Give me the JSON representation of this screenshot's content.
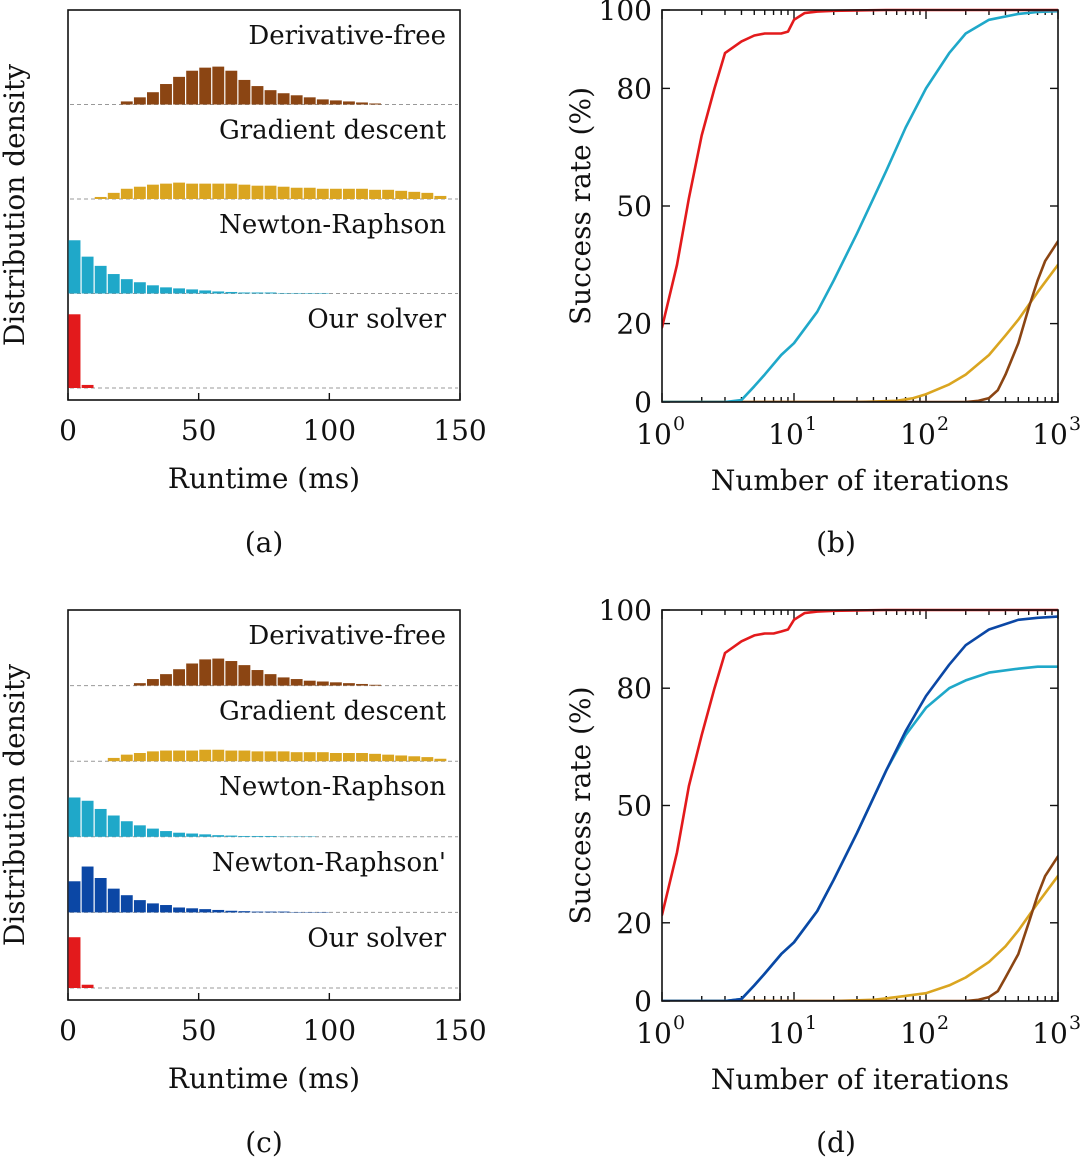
{
  "colors": {
    "derivative_free": "#8B4513",
    "gradient_descent": "#DAA520",
    "newton_raphson": "#1FA8C9",
    "newton_raphson_prime": "#0B47A5",
    "our_solver": "#E31A1C"
  },
  "chart_data": [
    {
      "panel": "(a)",
      "type": "bar",
      "subtype": "ridgeline-histogram",
      "xlabel": "Runtime (ms)",
      "ylabel": "Distribution density",
      "xlim": [
        0,
        150
      ],
      "xticks": [
        "0",
        "50",
        "100",
        "150"
      ],
      "bin_width": 5,
      "series": [
        {
          "name": "Derivative-free",
          "color": "derivative_free",
          "values": [
            0,
            0,
            0,
            0,
            0.03,
            0.07,
            0.12,
            0.2,
            0.27,
            0.33,
            0.36,
            0.37,
            0.33,
            0.24,
            0.18,
            0.14,
            0.11,
            0.09,
            0.07,
            0.05,
            0.04,
            0.03,
            0.02,
            0.01,
            0,
            0,
            0,
            0,
            0,
            0
          ]
        },
        {
          "name": "Gradient descent",
          "color": "gradient_descent",
          "values": [
            0,
            0,
            0.02,
            0.06,
            0.1,
            0.12,
            0.14,
            0.15,
            0.16,
            0.15,
            0.15,
            0.15,
            0.15,
            0.14,
            0.13,
            0.13,
            0.12,
            0.11,
            0.11,
            0.1,
            0.1,
            0.1,
            0.1,
            0.09,
            0.09,
            0.08,
            0.07,
            0.06,
            0.03,
            0
          ]
        },
        {
          "name": "Newton-Raphson",
          "color": "newton_raphson",
          "values": [
            0.52,
            0.36,
            0.27,
            0.19,
            0.14,
            0.11,
            0.08,
            0.06,
            0.05,
            0.04,
            0.03,
            0.02,
            0.015,
            0.01,
            0.01,
            0.01,
            0.005,
            0.005,
            0.005,
            0.005,
            0,
            0,
            0,
            0,
            0,
            0,
            0,
            0,
            0,
            0
          ]
        },
        {
          "name": "Our solver",
          "color": "our_solver",
          "values": [
            0.72,
            0.03,
            0,
            0,
            0,
            0,
            0,
            0,
            0,
            0,
            0,
            0,
            0,
            0,
            0,
            0,
            0,
            0,
            0,
            0,
            0,
            0,
            0,
            0,
            0,
            0,
            0,
            0,
            0,
            0
          ]
        }
      ]
    },
    {
      "panel": "(b)",
      "type": "line",
      "xscale": "log",
      "xlabel": "Number of iterations",
      "ylabel": "Success rate (%)",
      "xlim": [
        1,
        1000
      ],
      "ylim": [
        0,
        100
      ],
      "xticks_base": "10",
      "xticks_exp": [
        "0",
        "1",
        "2",
        "3"
      ],
      "yticks": [
        "0",
        "20",
        "50",
        "80",
        "100"
      ],
      "series": [
        {
          "name": "Our solver",
          "color": "our_solver",
          "x": [
            1,
            1.3,
            1.6,
            2,
            2.5,
            3,
            4,
            5,
            6,
            7,
            8,
            9,
            10,
            12,
            15,
            20,
            30,
            50,
            100,
            1000
          ],
          "y": [
            19,
            35,
            52,
            68,
            80,
            89,
            92,
            93.5,
            94,
            94,
            94,
            94.5,
            97.5,
            99.2,
            99.6,
            99.8,
            99.9,
            100,
            100,
            100
          ]
        },
        {
          "name": "Newton-Raphson",
          "color": "newton_raphson",
          "x": [
            1,
            3,
            4,
            5,
            6,
            8,
            10,
            15,
            20,
            30,
            40,
            50,
            70,
            100,
            150,
            200,
            300,
            500,
            700,
            1000
          ],
          "y": [
            0,
            0,
            0.5,
            4,
            7,
            12,
            15,
            23,
            31,
            43,
            52,
            59,
            70,
            80,
            89,
            94,
            97.5,
            99,
            99.5,
            99.7
          ]
        },
        {
          "name": "Derivative-free",
          "color": "derivative_free",
          "x": [
            1,
            100,
            200,
            250,
            300,
            350,
            400,
            500,
            600,
            700,
            800,
            1000
          ],
          "y": [
            0,
            0,
            0,
            0.3,
            1,
            3,
            7,
            15,
            24,
            31,
            36,
            41
          ]
        },
        {
          "name": "Gradient descent",
          "color": "gradient_descent",
          "x": [
            1,
            30,
            60,
            80,
            100,
            150,
            200,
            300,
            400,
            500,
            700,
            1000
          ],
          "y": [
            0,
            0,
            0.3,
            1,
            2,
            4.5,
            7,
            12,
            17,
            21,
            28,
            35
          ]
        }
      ]
    },
    {
      "panel": "(c)",
      "type": "bar",
      "subtype": "ridgeline-histogram",
      "xlabel": "Runtime (ms)",
      "ylabel": "Distribution density",
      "xlim": [
        0,
        150
      ],
      "xticks": [
        "0",
        "50",
        "100",
        "150"
      ],
      "bin_width": 5,
      "series": [
        {
          "name": "Derivative-free",
          "color": "derivative_free",
          "values": [
            0,
            0,
            0,
            0,
            0,
            0.03,
            0.08,
            0.14,
            0.2,
            0.27,
            0.32,
            0.33,
            0.3,
            0.25,
            0.19,
            0.14,
            0.1,
            0.08,
            0.06,
            0.05,
            0.04,
            0.03,
            0.02,
            0.01,
            0,
            0,
            0,
            0,
            0,
            0
          ]
        },
        {
          "name": "Gradient descent",
          "color": "gradient_descent",
          "values": [
            0,
            0,
            0,
            0.04,
            0.08,
            0.1,
            0.12,
            0.13,
            0.13,
            0.13,
            0.14,
            0.14,
            0.13,
            0.13,
            0.12,
            0.12,
            0.12,
            0.11,
            0.11,
            0.11,
            0.1,
            0.1,
            0.1,
            0.09,
            0.08,
            0.07,
            0.06,
            0.05,
            0.03,
            0
          ]
        },
        {
          "name": "Newton-Raphson",
          "color": "newton_raphson",
          "values": [
            0.48,
            0.44,
            0.34,
            0.26,
            0.19,
            0.14,
            0.1,
            0.07,
            0.05,
            0.04,
            0.03,
            0.02,
            0.015,
            0.01,
            0.01,
            0.01,
            0.005,
            0.005,
            0.005,
            0,
            0,
            0,
            0,
            0,
            0,
            0,
            0,
            0,
            0,
            0
          ]
        },
        {
          "name": "Newton-Raphson'",
          "color": "newton_raphson_prime",
          "values": [
            0.38,
            0.56,
            0.42,
            0.29,
            0.21,
            0.15,
            0.11,
            0.09,
            0.06,
            0.05,
            0.04,
            0.03,
            0.02,
            0.015,
            0.01,
            0.01,
            0.01,
            0.005,
            0.005,
            0.005,
            0,
            0,
            0,
            0,
            0,
            0,
            0,
            0,
            0,
            0
          ]
        },
        {
          "name": "Our solver",
          "color": "our_solver",
          "values": [
            0.62,
            0.04,
            0,
            0,
            0,
            0,
            0,
            0,
            0,
            0,
            0,
            0,
            0,
            0,
            0,
            0,
            0,
            0,
            0,
            0,
            0,
            0,
            0,
            0,
            0,
            0,
            0,
            0,
            0,
            0
          ]
        }
      ]
    },
    {
      "panel": "(d)",
      "type": "line",
      "xscale": "log",
      "xlabel": "Number of iterations",
      "ylabel": "Success rate (%)",
      "xlim": [
        1,
        1000
      ],
      "ylim": [
        0,
        100
      ],
      "xticks_base": "10",
      "xticks_exp": [
        "0",
        "1",
        "2",
        "3"
      ],
      "yticks": [
        "0",
        "20",
        "50",
        "80",
        "100"
      ],
      "series": [
        {
          "name": "Our solver",
          "color": "our_solver",
          "x": [
            1,
            1.3,
            1.6,
            2,
            2.5,
            3,
            4,
            5,
            6,
            7,
            8,
            9,
            10,
            12,
            15,
            20,
            30,
            50,
            100,
            1000
          ],
          "y": [
            22,
            38,
            55,
            68,
            80,
            89,
            92,
            93.5,
            94,
            94,
            94.5,
            95,
            97.5,
            99.2,
            99.6,
            99.8,
            99.9,
            100,
            100,
            100
          ]
        },
        {
          "name": "Newton-Raphson'",
          "color": "newton_raphson_prime",
          "x": [
            1,
            3,
            4,
            5,
            6,
            8,
            10,
            15,
            20,
            30,
            40,
            50,
            70,
            100,
            150,
            200,
            300,
            500,
            700,
            1000
          ],
          "y": [
            0,
            0,
            0.5,
            4,
            7,
            12,
            15,
            23,
            31,
            43,
            52,
            59,
            69,
            78,
            86,
            91,
            95,
            97.5,
            98,
            98.3
          ]
        },
        {
          "name": "Newton-Raphson",
          "color": "newton_raphson",
          "x": [
            1,
            3,
            4,
            5,
            6,
            8,
            10,
            15,
            20,
            30,
            40,
            50,
            70,
            100,
            150,
            200,
            300,
            500,
            700,
            1000
          ],
          "y": [
            0,
            0,
            0.5,
            4,
            7,
            12,
            15,
            23,
            31,
            43,
            52,
            59,
            68,
            75,
            80,
            82,
            84,
            85,
            85.5,
            85.5
          ]
        },
        {
          "name": "Derivative-free",
          "color": "derivative_free",
          "x": [
            1,
            100,
            200,
            250,
            300,
            350,
            400,
            500,
            600,
            700,
            800,
            1000
          ],
          "y": [
            0,
            0,
            0,
            0.3,
            1,
            2.5,
            6,
            12,
            20,
            27,
            32,
            37
          ]
        },
        {
          "name": "Gradient descent",
          "color": "gradient_descent",
          "x": [
            1,
            20,
            40,
            60,
            100,
            150,
            200,
            300,
            400,
            500,
            700,
            1000
          ],
          "y": [
            0,
            0,
            0.3,
            1,
            2,
            4,
            6,
            10,
            14,
            18,
            25,
            32
          ]
        }
      ]
    }
  ]
}
